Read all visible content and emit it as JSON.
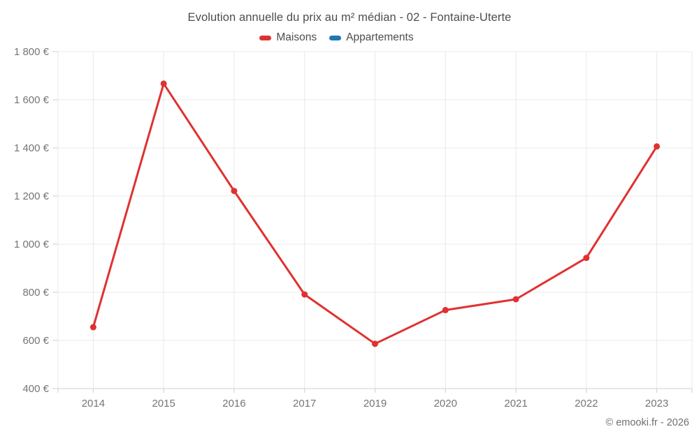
{
  "chart_data": {
    "type": "line",
    "title": "Evolution annuelle du prix au m² médian - 02 - Fontaine-Uterte",
    "categories": [
      "2014",
      "2015",
      "2016",
      "2017",
      "2019",
      "2020",
      "2021",
      "2022",
      "2023"
    ],
    "series": [
      {
        "name": "Maisons",
        "color": "#e03131",
        "values": [
          655,
          1667,
          1221,
          791,
          586,
          726,
          771,
          943,
          1406
        ]
      },
      {
        "name": "Appartements",
        "color": "#1f77b4",
        "values": []
      }
    ],
    "xlabel": "",
    "ylabel": "",
    "ylim": [
      400,
      1800
    ],
    "ytick_step": 200,
    "ytick_labels": [
      "400 €",
      "600 €",
      "800 €",
      "1 000 €",
      "1 200 €",
      "1 400 €",
      "1 600 €",
      "1 800 €"
    ],
    "grid": true,
    "legend_position": "top",
    "currency": "€"
  },
  "footer": {
    "copyright": "© emooki.fr - 2026"
  }
}
